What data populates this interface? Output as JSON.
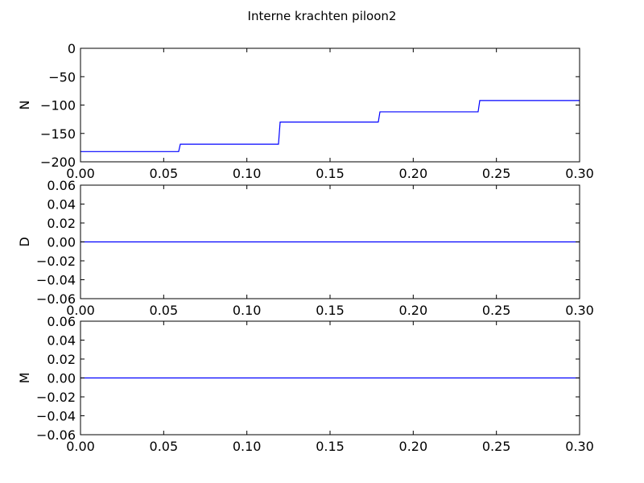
{
  "figure": {
    "title": "Interne krachten piloon2"
  },
  "chart_data": [
    {
      "type": "line",
      "ylabel": "N",
      "xlim": [
        0.0,
        0.3
      ],
      "ylim": [
        -200,
        0
      ],
      "xticks": [
        "0.00",
        "0.05",
        "0.10",
        "0.15",
        "0.20",
        "0.25",
        "0.30"
      ],
      "yticks": [
        "0",
        "−50",
        "−100",
        "−150",
        "−200"
      ],
      "ytick_values": [
        0,
        -50,
        -100,
        -150,
        -200
      ],
      "color": "#0000ff",
      "grid": false,
      "series": [
        {
          "x": [
            0.0,
            0.059,
            0.06,
            0.119,
            0.12,
            0.179,
            0.18,
            0.239,
            0.24,
            0.3
          ],
          "y": [
            -182,
            -182,
            -169,
            -169,
            -130,
            -130,
            -112,
            -112,
            -92,
            -92
          ]
        }
      ]
    },
    {
      "type": "line",
      "ylabel": "D",
      "xlim": [
        0.0,
        0.3
      ],
      "ylim": [
        -0.06,
        0.06
      ],
      "xticks": [
        "0.00",
        "0.05",
        "0.10",
        "0.15",
        "0.20",
        "0.25",
        "0.30"
      ],
      "yticks": [
        "0.06",
        "0.04",
        "0.02",
        "0.00",
        "−0.02",
        "−0.04",
        "−0.06"
      ],
      "ytick_values": [
        0.06,
        0.04,
        0.02,
        0.0,
        -0.02,
        -0.04,
        -0.06
      ],
      "color": "#0000ff",
      "grid": false,
      "series": [
        {
          "x": [
            0.0,
            0.3
          ],
          "y": [
            0.0,
            0.0
          ]
        }
      ]
    },
    {
      "type": "line",
      "ylabel": "M",
      "xlim": [
        0.0,
        0.3
      ],
      "ylim": [
        -0.06,
        0.06
      ],
      "xticks": [
        "0.00",
        "0.05",
        "0.10",
        "0.15",
        "0.20",
        "0.25",
        "0.30"
      ],
      "yticks": [
        "0.06",
        "0.04",
        "0.02",
        "0.00",
        "−0.02",
        "−0.04",
        "−0.06"
      ],
      "ytick_values": [
        0.06,
        0.04,
        0.02,
        0.0,
        -0.02,
        -0.04,
        -0.06
      ],
      "color": "#0000ff",
      "grid": false,
      "series": [
        {
          "x": [
            0.0,
            0.3
          ],
          "y": [
            0.0,
            0.0
          ]
        }
      ]
    }
  ]
}
